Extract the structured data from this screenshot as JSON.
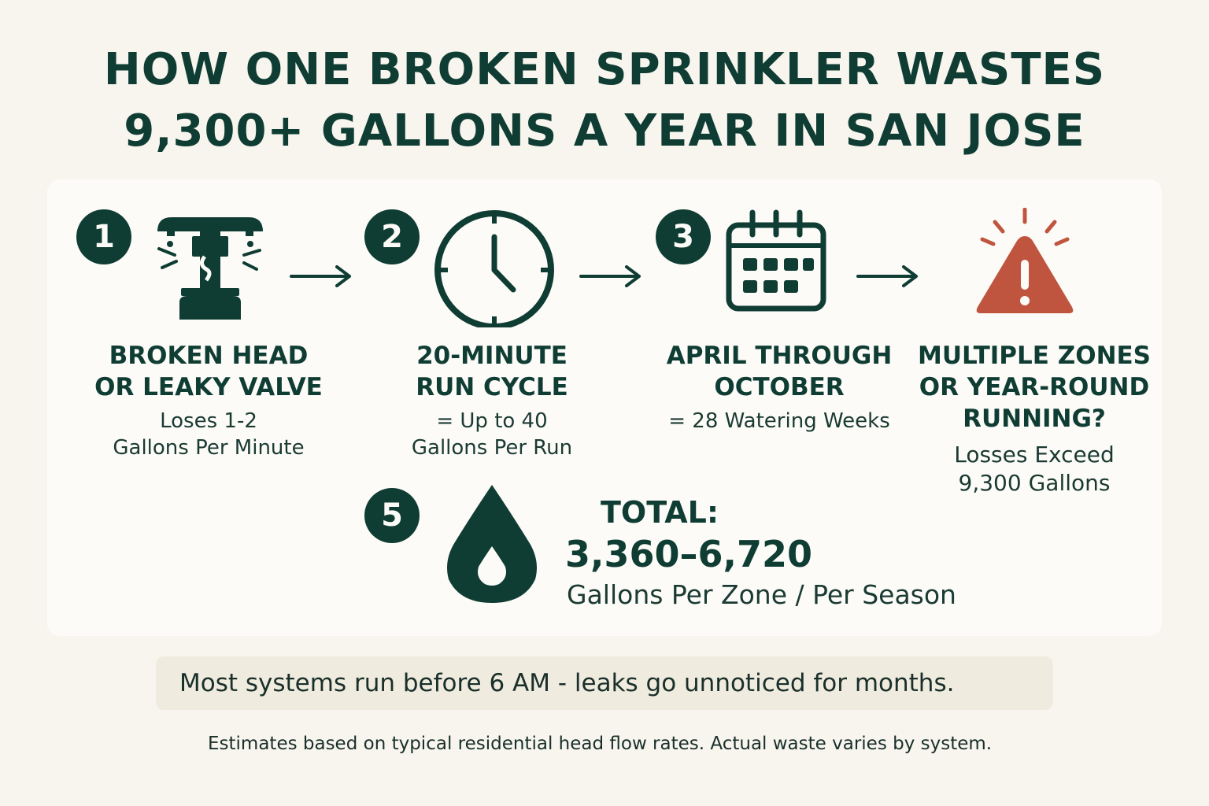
{
  "title": {
    "line1": "HOW ONE BROKEN SPRINKLER WASTES",
    "line2": "9,300+ GALLONS A YEAR IN SAN JOSE"
  },
  "steps": [
    {
      "number": "1",
      "heading1": "BROKEN HEAD",
      "heading2": "OR LEAKY VALVE",
      "sub1": "Loses 1-2",
      "sub2": "Gallons Per Minute",
      "icon": "broken-sprinkler-icon"
    },
    {
      "number": "2",
      "heading1": "20-MINUTE",
      "heading2": "RUN CYCLE",
      "sub1": "= Up to 40",
      "sub2": "Gallons Per Run",
      "icon": "clock-icon"
    },
    {
      "number": "3",
      "heading1": "APRIL THROUGH",
      "heading2": "OCTOBER",
      "sub1": "= 28 Watering Weeks",
      "icon": "calendar-icon"
    },
    {
      "heading1": "MULTIPLE ZONES",
      "heading2": "OR YEAR-ROUND",
      "heading3": "RUNNING?",
      "sub1": "Losses Exceed",
      "sub2": "9,300 Gallons",
      "icon": "warning-icon"
    }
  ],
  "total": {
    "number": "5",
    "label": "TOTAL:",
    "value": "3,360–6,720",
    "unit": "Gallons Per Zone / Per Season",
    "icon": "water-drop-icon"
  },
  "note": "Most systems run before 6 AM - leaks go unnoticed for months.",
  "footnote": "Estimates based on typical residential head flow rates. Actual waste varies by system.",
  "colors": {
    "primary": "#0f3d33",
    "warning": "#c0553f",
    "background": "#f7f5ee",
    "panel": "#fcfbf7",
    "note_bg": "#efebdf"
  }
}
